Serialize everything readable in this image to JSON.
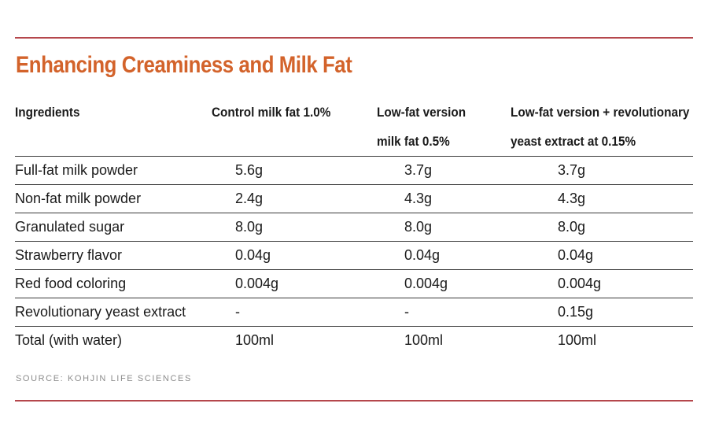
{
  "title": "Enhancing Creaminess and Milk Fat",
  "colors": {
    "title": "#d3632b",
    "rule": "#b5474c",
    "source": "#8c8c8c"
  },
  "table": {
    "headers": [
      "Ingredients",
      "Control milk fat 1.0%",
      [
        "Low-fat version",
        "milk fat 0.5%"
      ],
      [
        "Low-fat version + revolutionary",
        "yeast extract at 0.15%"
      ]
    ],
    "rows": [
      [
        "Full-fat milk powder",
        "5.6g",
        "3.7g",
        "3.7g"
      ],
      [
        "Non-fat milk powder",
        "2.4g",
        "4.3g",
        "4.3g"
      ],
      [
        "Granulated sugar",
        "8.0g",
        "8.0g",
        "8.0g"
      ],
      [
        "Strawberry flavor",
        "0.04g",
        "0.04g",
        "0.04g"
      ],
      [
        "Red food coloring",
        "0.004g",
        "0.004g",
        "0.004g"
      ],
      [
        "Revolutionary yeast extract",
        "-",
        "-",
        "0.15g"
      ],
      [
        "Total (with water)",
        "100ml",
        "100ml",
        "100ml"
      ]
    ]
  },
  "source": "SOURCE: KOHJIN LIFE SCIENCES"
}
